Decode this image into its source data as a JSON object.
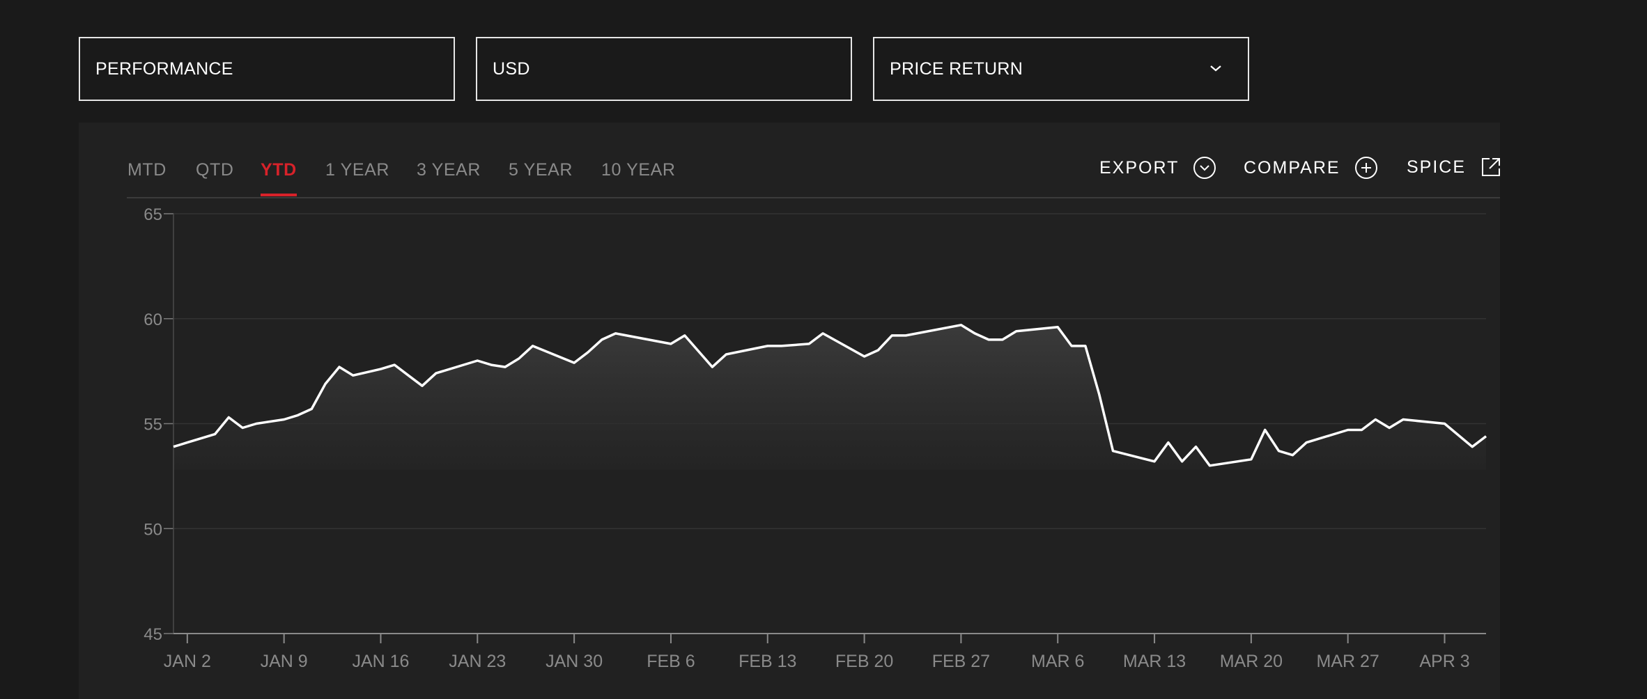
{
  "filters": {
    "view": "PERFORMANCE",
    "currency": "USD",
    "return_type": "PRICE RETURN"
  },
  "tabs": [
    {
      "label": "MTD"
    },
    {
      "label": "QTD"
    },
    {
      "label": "YTD",
      "active": true
    },
    {
      "label": "1 YEAR"
    },
    {
      "label": "3 YEAR"
    },
    {
      "label": "5 YEAR"
    },
    {
      "label": "10 YEAR"
    }
  ],
  "actions": {
    "export": "EXPORT",
    "compare": "COMPARE",
    "spice": "SPICE"
  },
  "colors": {
    "accent": "#d8222a",
    "line": "#ffffff",
    "background": "#1a1a1a",
    "panel": "#212121"
  },
  "chart_data": {
    "type": "area",
    "ylim": [
      45,
      65
    ],
    "y_ticks": [
      45,
      50,
      55,
      60,
      65
    ],
    "grid": true,
    "x_tick_labels": [
      "JAN 2",
      "JAN 9",
      "JAN 16",
      "JAN 23",
      "JAN 30",
      "FEB 6",
      "FEB 13",
      "FEB 20",
      "FEB 27",
      "MAR 6",
      "MAR 13",
      "MAR 20",
      "MAR 27",
      "APR 3"
    ],
    "x_range": [
      "2023-01-01",
      "2023-04-06"
    ],
    "series": [
      {
        "points": [
          [
            "2023-01-01",
            53.9
          ],
          [
            "2023-01-02",
            54.1
          ],
          [
            "2023-01-03",
            54.3
          ],
          [
            "2023-01-04",
            54.5
          ],
          [
            "2023-01-05",
            55.3
          ],
          [
            "2023-01-06",
            54.8
          ],
          [
            "2023-01-07",
            55.0
          ],
          [
            "2023-01-09",
            55.2
          ],
          [
            "2023-01-10",
            55.4
          ],
          [
            "2023-01-11",
            55.7
          ],
          [
            "2023-01-12",
            56.9
          ],
          [
            "2023-01-13",
            57.7
          ],
          [
            "2023-01-14",
            57.3
          ],
          [
            "2023-01-16",
            57.6
          ],
          [
            "2023-01-17",
            57.8
          ],
          [
            "2023-01-18",
            57.3
          ],
          [
            "2023-01-19",
            56.8
          ],
          [
            "2023-01-20",
            57.4
          ],
          [
            "2023-01-23",
            58.0
          ],
          [
            "2023-01-24",
            57.8
          ],
          [
            "2023-01-25",
            57.7
          ],
          [
            "2023-01-26",
            58.1
          ],
          [
            "2023-01-27",
            58.7
          ],
          [
            "2023-01-30",
            57.9
          ],
          [
            "2023-01-31",
            58.4
          ],
          [
            "2023-02-01",
            59.0
          ],
          [
            "2023-02-02",
            59.3
          ],
          [
            "2023-02-06",
            58.8
          ],
          [
            "2023-02-07",
            59.2
          ],
          [
            "2023-02-09",
            57.7
          ],
          [
            "2023-02-10",
            58.3
          ],
          [
            "2023-02-13",
            58.7
          ],
          [
            "2023-02-14",
            58.7
          ],
          [
            "2023-02-16",
            58.8
          ],
          [
            "2023-02-17",
            59.3
          ],
          [
            "2023-02-20",
            58.2
          ],
          [
            "2023-02-21",
            58.5
          ],
          [
            "2023-02-22",
            59.2
          ],
          [
            "2023-02-23",
            59.2
          ],
          [
            "2023-02-27",
            59.7
          ],
          [
            "2023-02-28",
            59.3
          ],
          [
            "2023-03-01",
            59.0
          ],
          [
            "2023-03-02",
            59.0
          ],
          [
            "2023-03-03",
            59.4
          ],
          [
            "2023-03-06",
            59.6
          ],
          [
            "2023-03-07",
            58.7
          ],
          [
            "2023-03-08",
            58.7
          ],
          [
            "2023-03-09",
            56.4
          ],
          [
            "2023-03-10",
            53.7
          ],
          [
            "2023-03-13",
            53.2
          ],
          [
            "2023-03-14",
            54.1
          ],
          [
            "2023-03-15",
            53.2
          ],
          [
            "2023-03-16",
            53.9
          ],
          [
            "2023-03-17",
            53.0
          ],
          [
            "2023-03-20",
            53.3
          ],
          [
            "2023-03-21",
            54.7
          ],
          [
            "2023-03-22",
            53.7
          ],
          [
            "2023-03-23",
            53.5
          ],
          [
            "2023-03-24",
            54.1
          ],
          [
            "2023-03-27",
            54.7
          ],
          [
            "2023-03-28",
            54.7
          ],
          [
            "2023-03-29",
            55.2
          ],
          [
            "2023-03-30",
            54.8
          ],
          [
            "2023-03-31",
            55.2
          ],
          [
            "2023-04-03",
            55.0
          ],
          [
            "2023-04-05",
            53.9
          ],
          [
            "2023-04-06",
            54.4
          ]
        ]
      }
    ]
  }
}
